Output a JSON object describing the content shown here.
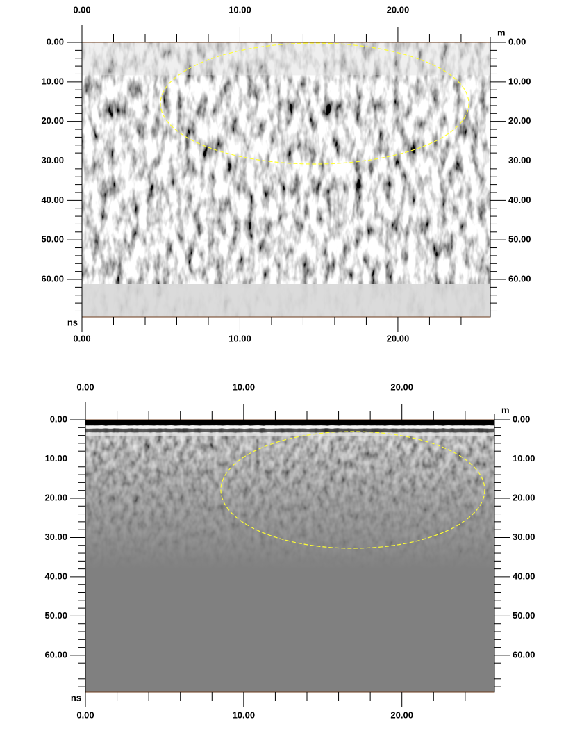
{
  "chart_data": [
    {
      "type": "radargram",
      "x_unit": "m",
      "y_unit": "ns",
      "xlim": [
        0,
        25.85
      ],
      "ylim": [
        0,
        69.5
      ],
      "xticks": [
        {
          "value": 0,
          "label": "0.00"
        },
        {
          "value": 10,
          "label": "10.00"
        },
        {
          "value": 20,
          "label": "20.00"
        }
      ],
      "yticks": [
        {
          "value": 0,
          "label": "0.00"
        },
        {
          "value": 10,
          "label": "10.00"
        },
        {
          "value": 20,
          "label": "20.00"
        },
        {
          "value": 30,
          "label": "30.00"
        },
        {
          "value": 40,
          "label": "40.00"
        },
        {
          "value": 50,
          "label": "50.00"
        },
        {
          "value": 60,
          "label": "60.00"
        }
      ],
      "xminorticks": [
        2,
        4,
        6,
        8,
        12,
        14,
        16,
        18,
        22,
        24
      ],
      "yminorticks": [
        2,
        4,
        6,
        8,
        12,
        14,
        16,
        18,
        22,
        24,
        26,
        28,
        32,
        34,
        36,
        38,
        42,
        44,
        46,
        48,
        52,
        54,
        56,
        58,
        62,
        64,
        66,
        68
      ]
    },
    {
      "type": "radargram",
      "x_unit": "m",
      "y_unit": "ns",
      "xlim": [
        0,
        25.85
      ],
      "ylim": [
        0,
        69.4
      ],
      "xticks": [
        {
          "value": 0,
          "label": "0.00"
        },
        {
          "value": 10,
          "label": "10.00"
        },
        {
          "value": 20,
          "label": "20.00"
        }
      ],
      "yticks": [
        {
          "value": 0,
          "label": "0.00"
        },
        {
          "value": 10,
          "label": "10.00"
        },
        {
          "value": 20,
          "label": "20.00"
        },
        {
          "value": 30,
          "label": "30.00"
        },
        {
          "value": 40,
          "label": "40.00"
        },
        {
          "value": 50,
          "label": "50.00"
        },
        {
          "value": 60,
          "label": "60.00"
        }
      ],
      "xminorticks": [
        2,
        4,
        6,
        8,
        12,
        14,
        16,
        18,
        22,
        24
      ],
      "yminorticks": [
        2,
        4,
        6,
        8,
        12,
        14,
        16,
        18,
        22,
        24,
        26,
        28,
        32,
        34,
        36,
        38,
        42,
        44,
        46,
        48,
        52,
        54,
        56,
        58,
        62,
        64,
        66,
        68
      ]
    }
  ]
}
